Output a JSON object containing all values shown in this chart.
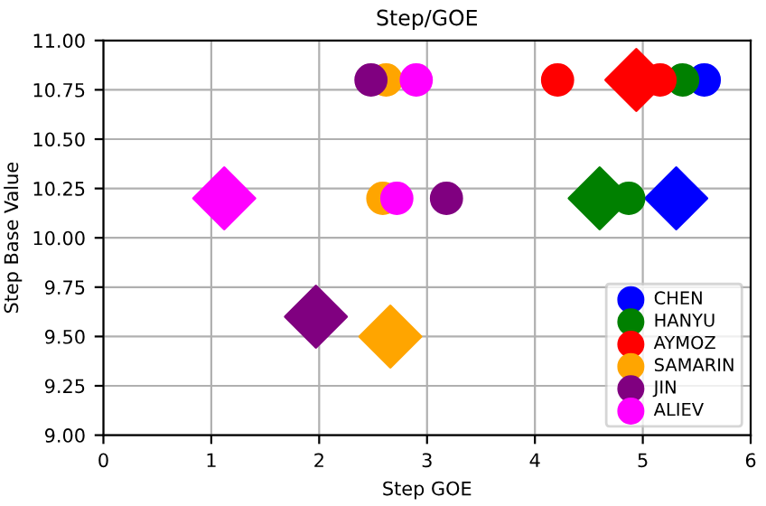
{
  "chart_data": {
    "type": "scatter",
    "title": "Step/GOE",
    "xlabel": "Step GOE",
    "ylabel": "Step Base Value",
    "xlim": [
      0,
      6
    ],
    "xticks": [
      0,
      1,
      2,
      3,
      4,
      5,
      6
    ],
    "ylim": [
      9.0,
      11.0
    ],
    "yticks": [
      {
        "value": 9.0,
        "label": "9.00"
      },
      {
        "value": 9.25,
        "label": "9.25"
      },
      {
        "value": 9.5,
        "label": "9.50"
      },
      {
        "value": 9.75,
        "label": "9.75"
      },
      {
        "value": 10.0,
        "label": "10.00"
      },
      {
        "value": 10.25,
        "label": "10.25"
      },
      {
        "value": 10.5,
        "label": "10.50"
      },
      {
        "value": 10.75,
        "label": "10.75"
      },
      {
        "value": 11.0,
        "label": "11.00"
      }
    ],
    "grid": true,
    "legend": "bottom right",
    "marker": "circle",
    "series": [
      {
        "name": "CHEN",
        "color": "#0000ff",
        "x": [
          5.57
        ],
        "values": [
          10.8
        ]
      },
      {
        "name": "HANYU",
        "color": "#008000",
        "x": [
          5.37,
          4.87
        ],
        "values": [
          10.8,
          10.2
        ]
      },
      {
        "name": "AYMOZ",
        "color": "#ff0000",
        "x": [
          4.21,
          5.16
        ],
        "values": [
          10.8,
          10.8
        ]
      },
      {
        "name": "SAMARIN",
        "color": "#ffa500",
        "x": [
          2.62,
          2.59
        ],
        "values": [
          10.8,
          10.2
        ]
      },
      {
        "name": "JIN",
        "color": "#800080",
        "x": [
          2.48,
          3.18
        ],
        "values": [
          10.8,
          10.2
        ]
      },
      {
        "name": "ALIEV",
        "color": "#ff00ff",
        "x": [
          2.9,
          2.72
        ],
        "values": [
          10.8,
          10.2
        ]
      },
      {
        "color": "#0000ff",
        "marker": "diamond",
        "x": [
          5.31
        ],
        "values": [
          10.2
        ]
      },
      {
        "color": "#008000",
        "marker": "diamond",
        "x": [
          4.6
        ],
        "values": [
          10.2
        ]
      },
      {
        "color": "#ff0000",
        "marker": "diamond",
        "x": [
          4.94
        ],
        "values": [
          10.8
        ]
      },
      {
        "color": "#ffa500",
        "marker": "diamond",
        "x": [
          2.66
        ],
        "values": [
          9.5
        ]
      },
      {
        "color": "#800080",
        "marker": "diamond",
        "x": [
          1.97
        ],
        "values": [
          9.6
        ]
      },
      {
        "color": "#ff00ff",
        "marker": "diamond",
        "x": [
          1.12
        ],
        "values": [
          10.2
        ]
      }
    ]
  }
}
